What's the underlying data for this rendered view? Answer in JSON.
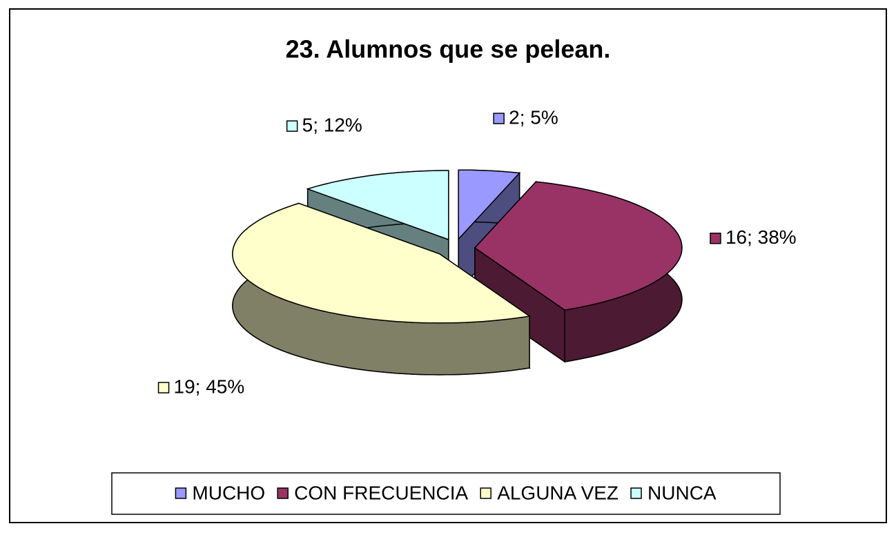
{
  "chart_data": {
    "type": "pie3d",
    "title": "23. Alumnos que se pelean.",
    "categories": [
      "MUCHO",
      "CON FRECUENCIA",
      "ALGUNA VEZ",
      "NUNCA"
    ],
    "values": [
      2,
      16,
      19,
      5
    ],
    "value_labels": [
      "2; 5%",
      "16; 38%",
      "19; 45%",
      "5; 12%"
    ],
    "colors": [
      "#9999ff",
      "#993366",
      "#ffffcc",
      "#ccffff"
    ],
    "legend": "bottom"
  }
}
